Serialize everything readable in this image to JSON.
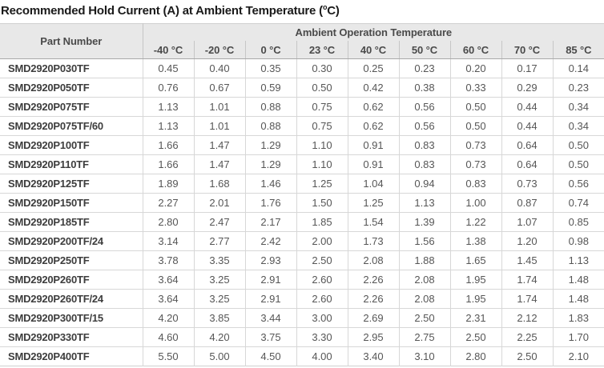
{
  "title": {
    "prefix": "Recommended Hold Current (A) at Ambient Temperature (",
    "sup": "o",
    "suffix": "C)"
  },
  "theme": {
    "header_bg": "#e8e8e8",
    "header_text": "#4a4a4a",
    "header_bottom_border": "#a9a9a9",
    "grid_line": "#d7d7d7",
    "part_text": "#3d3d3d",
    "value_text": "#565656",
    "title_text": "#1a1a1a"
  },
  "table": {
    "part_number_header": "Part Number",
    "group_header": "Ambient Operation Temperature",
    "temp_headers": [
      "-40 °C",
      "-20 °C",
      "0 °C",
      "23 °C",
      "40 °C",
      "50 °C",
      "60 °C",
      "70 °C",
      "85 °C"
    ],
    "rows": [
      {
        "part": "SMD2920P030TF",
        "values": [
          "0.45",
          "0.40",
          "0.35",
          "0.30",
          "0.25",
          "0.23",
          "0.20",
          "0.17",
          "0.14"
        ]
      },
      {
        "part": "SMD2920P050TF",
        "values": [
          "0.76",
          "0.67",
          "0.59",
          "0.50",
          "0.42",
          "0.38",
          "0.33",
          "0.29",
          "0.23"
        ]
      },
      {
        "part": "SMD2920P075TF",
        "values": [
          "1.13",
          "1.01",
          "0.88",
          "0.75",
          "0.62",
          "0.56",
          "0.50",
          "0.44",
          "0.34"
        ]
      },
      {
        "part": "SMD2920P075TF/60",
        "values": [
          "1.13",
          "1.01",
          "0.88",
          "0.75",
          "0.62",
          "0.56",
          "0.50",
          "0.44",
          "0.34"
        ]
      },
      {
        "part": "SMD2920P100TF",
        "values": [
          "1.66",
          "1.47",
          "1.29",
          "1.10",
          "0.91",
          "0.83",
          "0.73",
          "0.64",
          "0.50"
        ]
      },
      {
        "part": "SMD2920P110TF",
        "values": [
          "1.66",
          "1.47",
          "1.29",
          "1.10",
          "0.91",
          "0.83",
          "0.73",
          "0.64",
          "0.50"
        ]
      },
      {
        "part": "SMD2920P125TF",
        "values": [
          "1.89",
          "1.68",
          "1.46",
          "1.25",
          "1.04",
          "0.94",
          "0.83",
          "0.73",
          "0.56"
        ]
      },
      {
        "part": "SMD2920P150TF",
        "values": [
          "2.27",
          "2.01",
          "1.76",
          "1.50",
          "1.25",
          "1.13",
          "1.00",
          "0.87",
          "0.74"
        ]
      },
      {
        "part": "SMD2920P185TF",
        "values": [
          "2.80",
          "2.47",
          "2.17",
          "1.85",
          "1.54",
          "1.39",
          "1.22",
          "1.07",
          "0.85"
        ]
      },
      {
        "part": "SMD2920P200TF/24",
        "values": [
          "3.14",
          "2.77",
          "2.42",
          "2.00",
          "1.73",
          "1.56",
          "1.38",
          "1.20",
          "0.98"
        ]
      },
      {
        "part": "SMD2920P250TF",
        "values": [
          "3.78",
          "3.35",
          "2.93",
          "2.50",
          "2.08",
          "1.88",
          "1.65",
          "1.45",
          "1.13"
        ]
      },
      {
        "part": "SMD2920P260TF",
        "values": [
          "3.64",
          "3.25",
          "2.91",
          "2.60",
          "2.26",
          "2.08",
          "1.95",
          "1.74",
          "1.48"
        ]
      },
      {
        "part": "SMD2920P260TF/24",
        "values": [
          "3.64",
          "3.25",
          "2.91",
          "2.60",
          "2.26",
          "2.08",
          "1.95",
          "1.74",
          "1.48"
        ]
      },
      {
        "part": "SMD2920P300TF/15",
        "values": [
          "4.20",
          "3.85",
          "3.44",
          "3.00",
          "2.69",
          "2.50",
          "2.31",
          "2.12",
          "1.83"
        ]
      },
      {
        "part": "SMD2920P330TF",
        "values": [
          "4.60",
          "4.20",
          "3.75",
          "3.30",
          "2.95",
          "2.75",
          "2.50",
          "2.25",
          "1.70"
        ]
      },
      {
        "part": "SMD2920P400TF",
        "values": [
          "5.50",
          "5.00",
          "4.50",
          "4.00",
          "3.40",
          "3.10",
          "2.80",
          "2.50",
          "2.10"
        ]
      }
    ]
  }
}
